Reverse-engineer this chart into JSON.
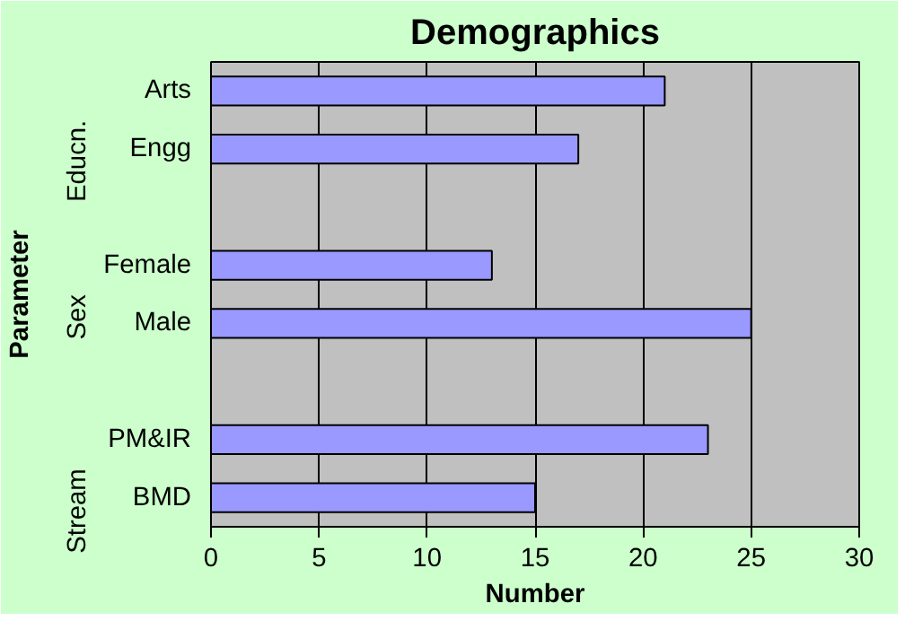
{
  "chart_data": {
    "type": "bar",
    "orientation": "horizontal",
    "title": "Demographics",
    "xlabel": "Number",
    "ylabel": "Parameter",
    "categories": [
      "Arts",
      "Engg",
      null,
      "Female",
      "Male",
      null,
      "PM&IR",
      "BMD"
    ],
    "values": [
      21,
      17,
      null,
      13,
      25,
      null,
      23,
      15
    ],
    "color": "#9999ff",
    "annotations": [
      "Educn.",
      "Sex",
      "Stream"
    ],
    "xlim": [
      0,
      30
    ],
    "xticks": [
      0,
      5,
      10,
      15,
      20,
      25,
      30
    ],
    "grid": "x"
  }
}
